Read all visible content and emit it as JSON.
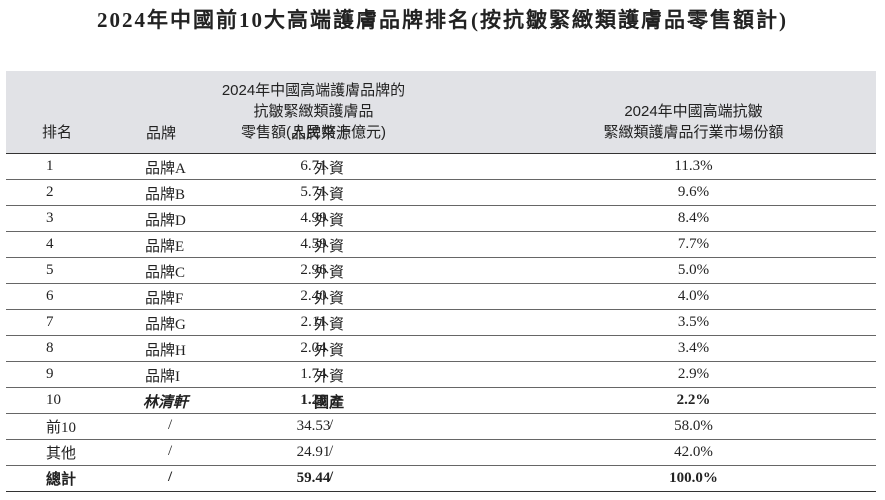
{
  "title": "2024年中國前10大高端護膚品牌排名(按抗皺緊緻類護膚品零售額計)",
  "headers": {
    "rank": "排名",
    "brand": "品牌",
    "origin": "品牌來源",
    "sales": [
      "2024年中國高端護膚品牌的",
      "抗皺緊緻類護膚品",
      "零售額(人民幣十億元)"
    ],
    "share": [
      "2024年中國高端抗皺",
      "緊緻類護膚品行業市場份額"
    ]
  },
  "rows": [
    {
      "rank": "1",
      "brand": "品牌A",
      "origin": "外資",
      "sales": "6.71",
      "share": "11.3%"
    },
    {
      "rank": "2",
      "brand": "品牌B",
      "origin": "外資",
      "sales": "5.71",
      "share": "9.6%"
    },
    {
      "rank": "3",
      "brand": "品牌D",
      "origin": "外資",
      "sales": "4.99",
      "share": "8.4%"
    },
    {
      "rank": "4",
      "brand": "品牌E",
      "origin": "外資",
      "sales": "4.59",
      "share": "7.7%"
    },
    {
      "rank": "5",
      "brand": "品牌C",
      "origin": "外資",
      "sales": "2.96",
      "share": "5.0%"
    },
    {
      "rank": "6",
      "brand": "品牌F",
      "origin": "外資",
      "sales": "2.40",
      "share": "4.0%"
    },
    {
      "rank": "7",
      "brand": "品牌G",
      "origin": "外資",
      "sales": "2.11",
      "share": "3.5%"
    },
    {
      "rank": "8",
      "brand": "品牌H",
      "origin": "外資",
      "sales": "2.04",
      "share": "3.4%"
    },
    {
      "rank": "9",
      "brand": "品牌I",
      "origin": "外資",
      "sales": "1.74",
      "share": "2.9%"
    },
    {
      "rank": "10",
      "brand": "林清軒",
      "origin": "國產",
      "sales": "1.28",
      "share": "2.2%"
    },
    {
      "rank": "前10",
      "brand": "/",
      "origin": "/",
      "sales": "34.53",
      "share": "58.0%"
    },
    {
      "rank": "其他",
      "brand": "/",
      "origin": "/",
      "sales": "24.91",
      "share": "42.0%"
    },
    {
      "rank": "總計",
      "brand": "/",
      "origin": "/",
      "sales": "59.44",
      "share": "100.0%"
    }
  ],
  "colors": {
    "header_bg": "#e1e2e6",
    "text": "#222222",
    "rule": "#333333"
  }
}
